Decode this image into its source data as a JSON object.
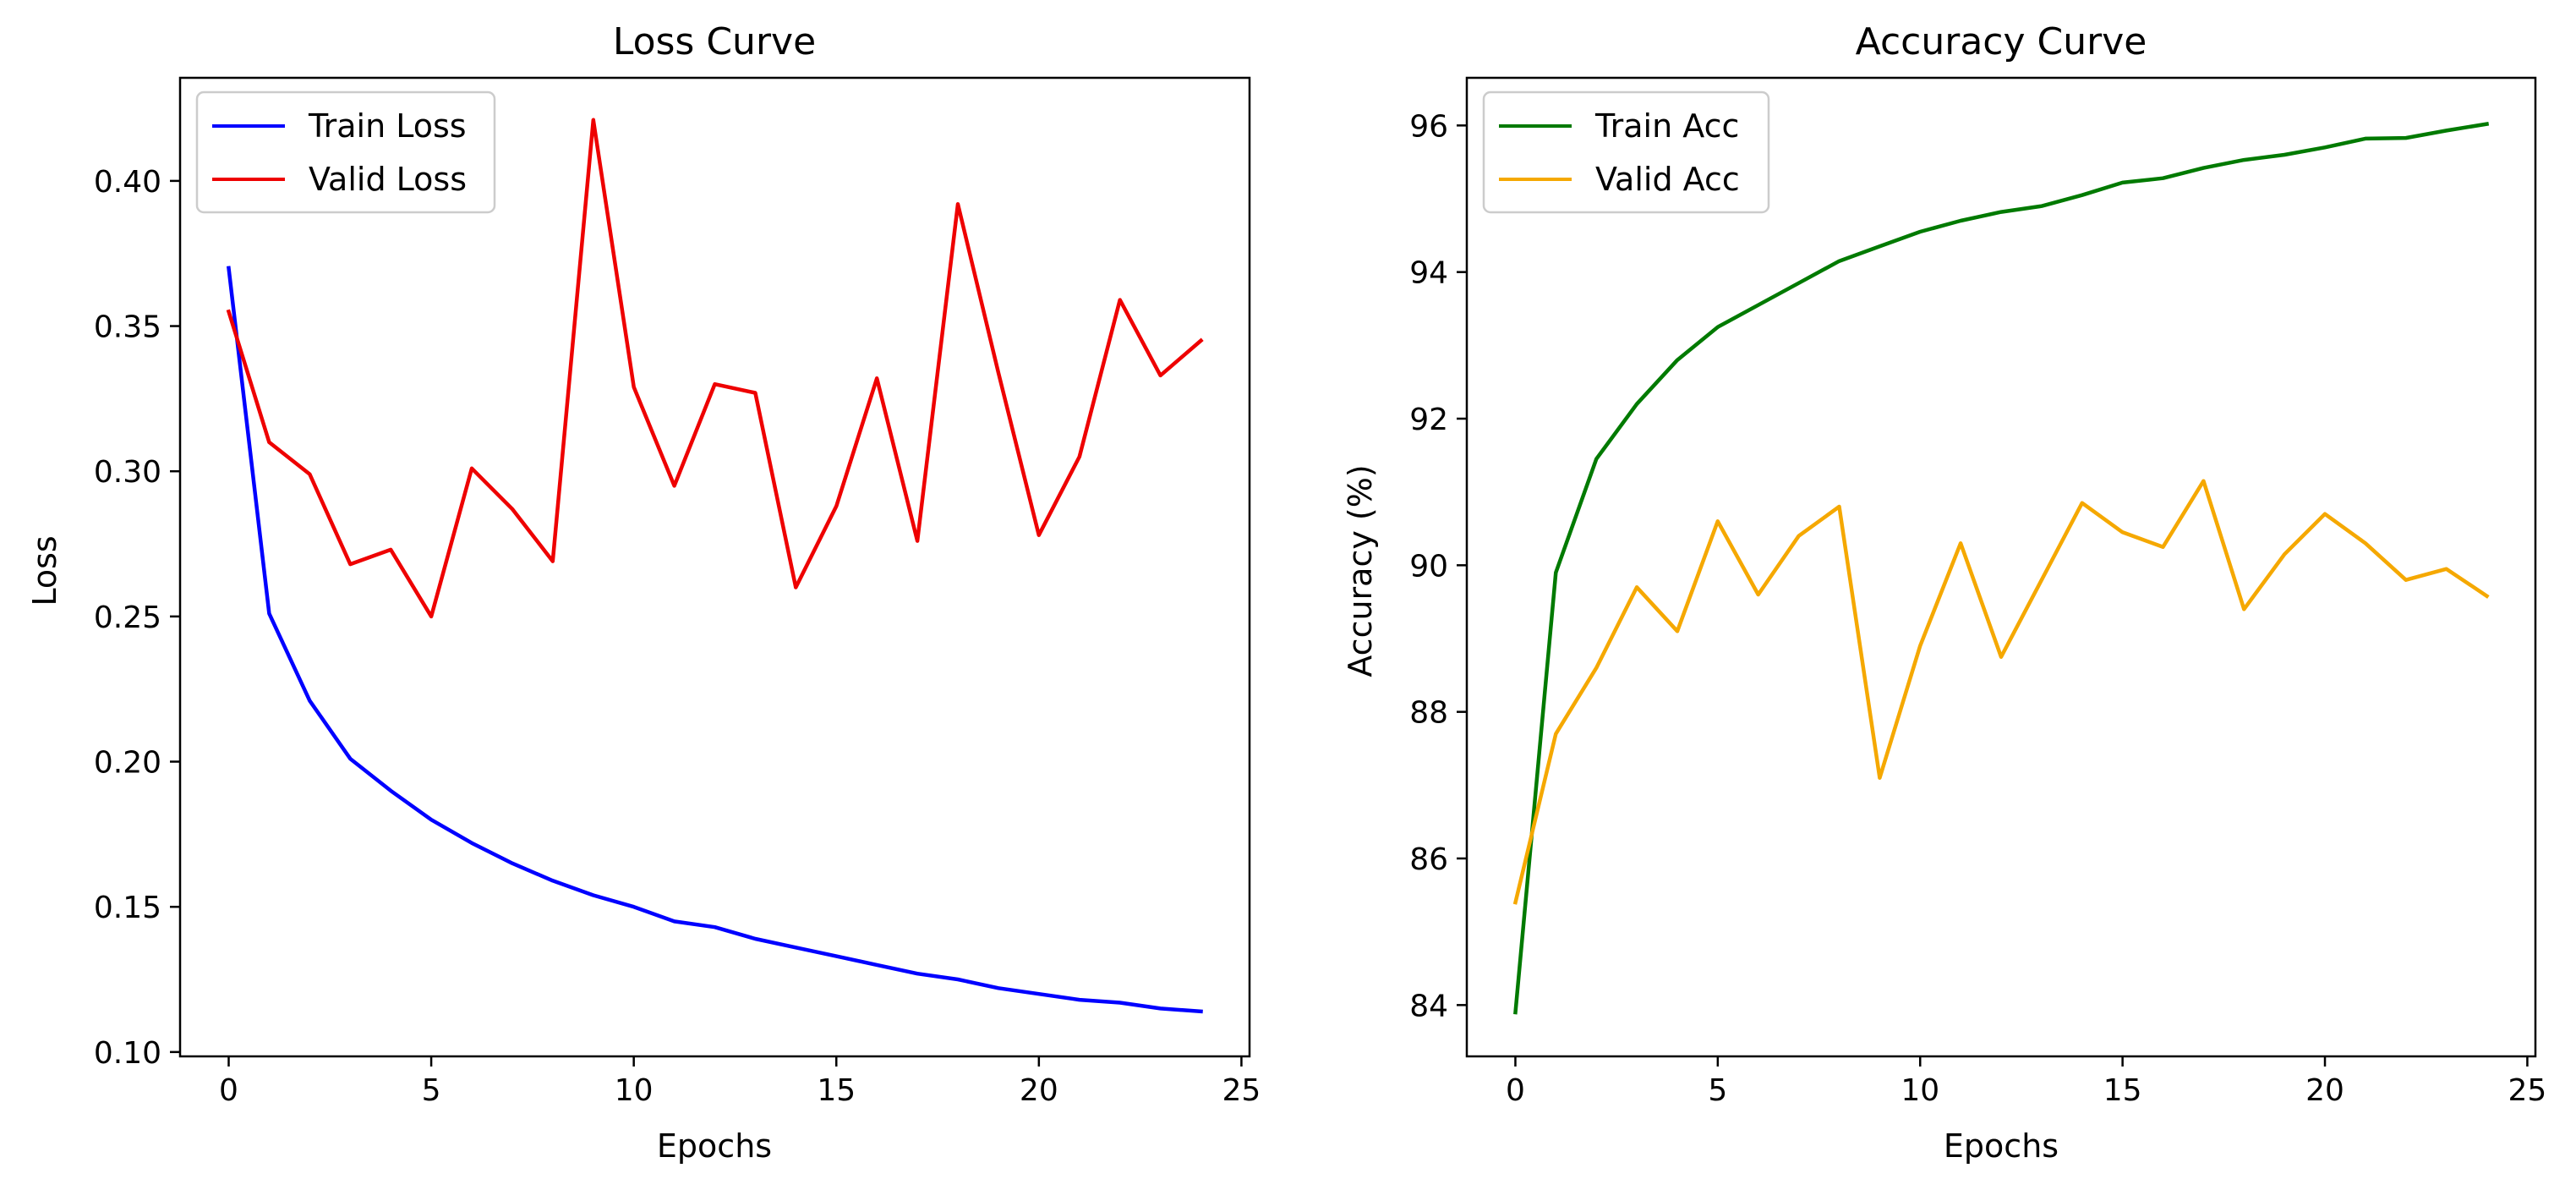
{
  "colors": {
    "train_loss": "#0000ff",
    "valid_loss": "#ee0000",
    "train_acc": "#007a00",
    "valid_acc": "#f5a800"
  },
  "chart_data": [
    {
      "id": "loss",
      "type": "line",
      "title": "Loss Curve",
      "xlabel": "Epochs",
      "ylabel": "Loss",
      "xlim": [
        -1.2,
        25.2
      ],
      "ylim": [
        0.0985,
        0.4355
      ],
      "xticks": [
        0,
        5,
        10,
        15,
        20,
        25
      ],
      "yticks": [
        0.1,
        0.15,
        0.2,
        0.25,
        0.3,
        0.35,
        0.4
      ],
      "ytick_labels": [
        "0.10",
        "0.15",
        "0.20",
        "0.25",
        "0.30",
        "0.35",
        "0.40"
      ],
      "grid": false,
      "legend_position": "upper-left",
      "x": [
        0,
        1,
        2,
        3,
        4,
        5,
        6,
        7,
        8,
        9,
        10,
        11,
        12,
        13,
        14,
        15,
        16,
        17,
        18,
        19,
        20,
        21,
        22,
        23,
        24
      ],
      "series": [
        {
          "name": "Train Loss",
          "color_key": "train_loss",
          "values": [
            0.37,
            0.251,
            0.221,
            0.201,
            0.19,
            0.18,
            0.172,
            0.165,
            0.159,
            0.154,
            0.15,
            0.145,
            0.143,
            0.139,
            0.136,
            0.133,
            0.13,
            0.127,
            0.125,
            0.122,
            0.12,
            0.118,
            0.117,
            0.115,
            0.114
          ]
        },
        {
          "name": "Valid Loss",
          "color_key": "valid_loss",
          "values": [
            0.355,
            0.31,
            0.299,
            0.268,
            0.273,
            0.25,
            0.301,
            0.287,
            0.269,
            0.421,
            0.329,
            0.295,
            0.33,
            0.327,
            0.26,
            0.288,
            0.332,
            0.276,
            0.392,
            0.334,
            0.278,
            0.305,
            0.359,
            0.333,
            0.345
          ]
        }
      ]
    },
    {
      "id": "accuracy",
      "type": "line",
      "title": "Accuracy Curve",
      "xlabel": "Epochs",
      "ylabel": "Accuracy (%)",
      "xlim": [
        -1.2,
        25.2
      ],
      "ylim": [
        83.3,
        96.65
      ],
      "xticks": [
        0,
        5,
        10,
        15,
        20,
        25
      ],
      "yticks": [
        84,
        86,
        88,
        90,
        92,
        94,
        96
      ],
      "ytick_labels": [
        "84",
        "86",
        "88",
        "90",
        "92",
        "94",
        "96"
      ],
      "grid": false,
      "legend_position": "upper-left",
      "x": [
        0,
        1,
        2,
        3,
        4,
        5,
        6,
        7,
        8,
        9,
        10,
        11,
        12,
        13,
        14,
        15,
        16,
        17,
        18,
        19,
        20,
        21,
        22,
        23,
        24
      ],
      "series": [
        {
          "name": "Train Acc",
          "color_key": "train_acc",
          "values": [
            83.9,
            89.9,
            91.45,
            92.2,
            92.8,
            93.25,
            93.55,
            93.85,
            94.15,
            94.35,
            94.55,
            94.7,
            94.82,
            94.9,
            95.05,
            95.22,
            95.28,
            95.42,
            95.53,
            95.6,
            95.7,
            95.82,
            95.83,
            95.93,
            96.02
          ]
        },
        {
          "name": "Valid Acc",
          "color_key": "valid_acc",
          "values": [
            85.4,
            87.7,
            88.6,
            89.7,
            89.1,
            90.6,
            89.6,
            90.4,
            90.8,
            87.1,
            88.9,
            90.3,
            88.75,
            89.8,
            90.85,
            90.45,
            90.25,
            91.15,
            89.4,
            90.15,
            90.7,
            90.3,
            89.8,
            89.95,
            89.58
          ]
        }
      ]
    }
  ]
}
